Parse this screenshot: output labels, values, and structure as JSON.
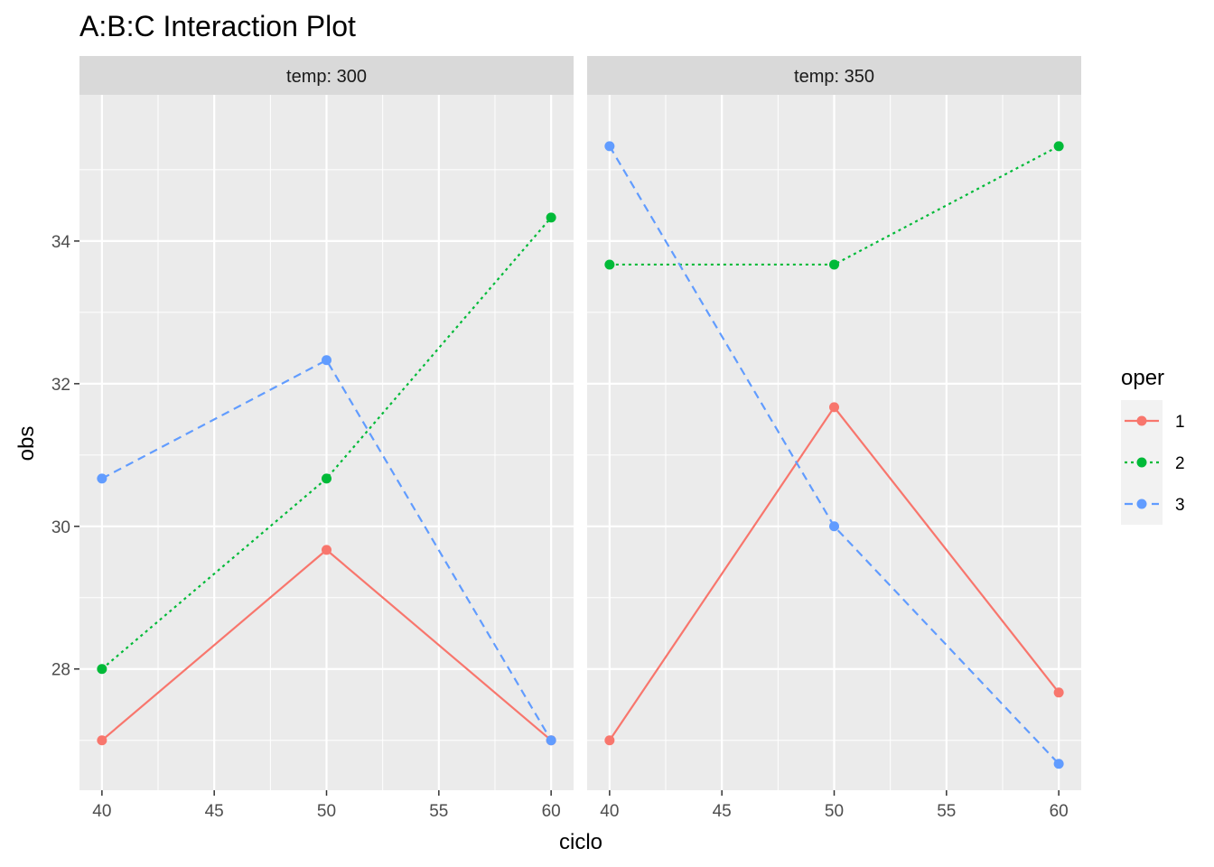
{
  "chart_data": {
    "type": "line",
    "title": "A:B:C Interaction Plot",
    "xlabel": "ciclo",
    "ylabel": "obs",
    "x_ticks": [
      40,
      45,
      50,
      55,
      60
    ],
    "y_ticks": [
      28,
      30,
      32,
      34
    ],
    "xlim": [
      39,
      61
    ],
    "ylim": [
      26.3,
      36.05
    ],
    "grid": true,
    "legend": {
      "title": "oper",
      "position": "right",
      "entries": [
        "1",
        "2",
        "3"
      ]
    },
    "panels": [
      {
        "strip_label": "temp: 300",
        "series": [
          {
            "name": "1",
            "color": "#F8766D",
            "dash": "solid",
            "x": [
              40,
              50,
              60
            ],
            "y": [
              27.0,
              29.67,
              27.0
            ]
          },
          {
            "name": "2",
            "color": "#00BA38",
            "dash": "dotted",
            "x": [
              40,
              50,
              60
            ],
            "y": [
              28.0,
              30.67,
              34.33
            ]
          },
          {
            "name": "3",
            "color": "#619CFF",
            "dash": "dashed",
            "x": [
              40,
              50,
              60
            ],
            "y": [
              30.67,
              32.33,
              27.0
            ]
          }
        ]
      },
      {
        "strip_label": "temp: 350",
        "series": [
          {
            "name": "1",
            "color": "#F8766D",
            "dash": "solid",
            "x": [
              40,
              50,
              60
            ],
            "y": [
              27.0,
              31.67,
              27.67
            ]
          },
          {
            "name": "2",
            "color": "#00BA38",
            "dash": "dotted",
            "x": [
              40,
              50,
              60
            ],
            "y": [
              33.67,
              33.67,
              35.33
            ]
          },
          {
            "name": "3",
            "color": "#619CFF",
            "dash": "dashed",
            "x": [
              40,
              50,
              60
            ],
            "y": [
              35.33,
              30.0,
              26.67
            ]
          }
        ]
      }
    ]
  }
}
